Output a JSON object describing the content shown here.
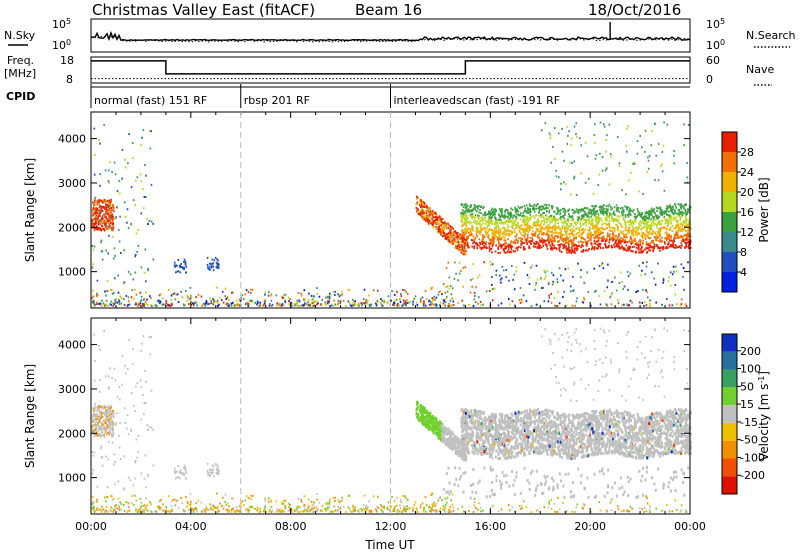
{
  "header": {
    "title": "Christmas Valley East (fitACF)",
    "beam": "Beam 16",
    "date": "18/Oct/2016"
  },
  "top_panels": {
    "nsky_label": "N.Sky",
    "nsky_ticks": [
      "10^5",
      "10^0"
    ],
    "nsearch_label": "N.Search",
    "nsearch_ticks": [
      "10^5",
      "10^0"
    ],
    "freq_label": "Freq.",
    "freq_unit": "[MHz]",
    "freq_ticks": [
      "18",
      "8"
    ],
    "nave_label": "Nave",
    "nave_ticks": [
      "60",
      "0"
    ],
    "cpid_label": "CPID"
  },
  "cpid_segments": [
    {
      "start_h": 0,
      "label": "normal (fast) 151 RF"
    },
    {
      "start_h": 6,
      "label": "rbsp 201 RF"
    },
    {
      "start_h": 12,
      "label": "interleavedscan (fast) -191 RF"
    }
  ],
  "freq_nave_data": {
    "freq_steps": [
      [
        0,
        16.5
      ],
      [
        3,
        11.5
      ],
      [
        15,
        16.5
      ],
      [
        24,
        16.5
      ]
    ],
    "nave_level": 10
  },
  "chart_data": [
    {
      "type": "heatmap",
      "name": "power",
      "ylabel": "Slant Range [km]",
      "xlabel": "",
      "xlim": [
        0,
        24
      ],
      "ylim": [
        180,
        4600
      ],
      "x_ticks": [
        "00:00",
        "04:00",
        "08:00",
        "12:00",
        "16:00",
        "20:00",
        "00:00"
      ],
      "y_ticks": [
        1000,
        2000,
        3000,
        4000
      ],
      "colorbar_label": "Power [dB]",
      "colorbar_ticks": [
        4,
        8,
        12,
        16,
        20,
        24,
        28
      ],
      "colorbar_range": [
        0,
        30
      ],
      "colors": [
        "#0020e0",
        "#2050c0",
        "#3a8a8a",
        "#3aa040",
        "#b8d820",
        "#f0b000",
        "#f07000",
        "#e82000"
      ]
    },
    {
      "type": "heatmap",
      "name": "velocity",
      "ylabel": "Slant Range [km]",
      "xlabel": "Time UT",
      "xlim": [
        0,
        24
      ],
      "ylim": [
        180,
        4600
      ],
      "x_ticks": [
        "00:00",
        "04:00",
        "08:00",
        "12:00",
        "16:00",
        "20:00",
        "00:00"
      ],
      "y_ticks": [
        1000,
        2000,
        3000,
        4000
      ],
      "colorbar_label": "Velocity [m s^-1]",
      "colorbar_ticks": [
        "200",
        "100",
        "50",
        "15",
        "-15",
        "-50",
        "-100",
        "-200"
      ],
      "colors": [
        "#1030c0",
        "#2870a0",
        "#38a060",
        "#70d030",
        "#c0c0c0",
        "#f0c000",
        "#f09000",
        "#f05000",
        "#e01000"
      ]
    }
  ]
}
